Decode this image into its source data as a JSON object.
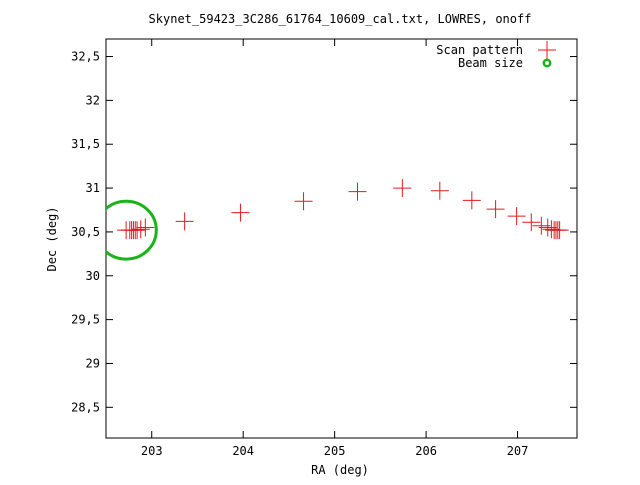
{
  "chart_data": {
    "type": "scatter",
    "title": "Skynet_59423_3C286_61764_10609_cal.txt, LOWRES, onoff",
    "xlabel": "RA (deg)",
    "ylabel": "Dec (deg)",
    "xlim": [
      202.5,
      207.65
    ],
    "ylim": [
      28.15,
      32.7
    ],
    "x_ticks": [
      203,
      204,
      205,
      206,
      207
    ],
    "x_tick_labels": [
      "203",
      "204",
      "205",
      "206",
      "207"
    ],
    "y_ticks": [
      28.5,
      29,
      29.5,
      30,
      30.5,
      31,
      31.5,
      32,
      32.5
    ],
    "y_tick_labels": [
      "28,5",
      "29",
      "29,5",
      "30",
      "30,5",
      "31",
      "31,5",
      "32",
      "32,5"
    ],
    "grid": false,
    "legend_position": "top-right",
    "series": [
      {
        "name": "Scan pattern",
        "marker": "plus",
        "color": "#e41a1c",
        "x": [
          202.72,
          202.76,
          202.78,
          202.8,
          202.82,
          202.84,
          202.88,
          202.93,
          203.36,
          203.97,
          204.66,
          205.25,
          205.74,
          206.15,
          206.5,
          206.76,
          206.99,
          207.15,
          207.26,
          207.33,
          207.37,
          207.4,
          207.42,
          207.44,
          207.46
        ],
        "y": [
          30.52,
          30.52,
          30.52,
          30.52,
          30.52,
          30.52,
          30.53,
          30.55,
          30.62,
          30.72,
          30.85,
          30.96,
          31.0,
          30.97,
          30.86,
          30.76,
          30.68,
          30.61,
          30.57,
          30.55,
          30.53,
          30.52,
          30.52,
          30.52,
          30.52
        ]
      },
      {
        "name": "Beam size",
        "marker": "circle",
        "color": "#18b418",
        "center": [
          202.72,
          30.52
        ],
        "radius_deg": 0.33
      }
    ]
  }
}
